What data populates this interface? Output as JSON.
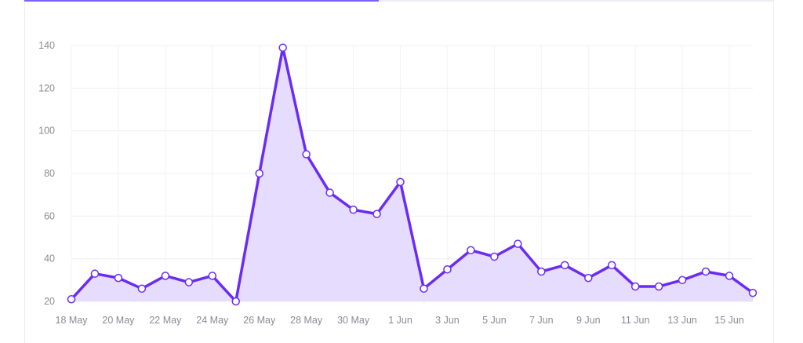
{
  "page": {
    "progress_fraction": 0.473,
    "accent_color": "#7b61ff"
  },
  "chart_data": {
    "type": "area",
    "title": "",
    "xlabel": "",
    "ylabel": "",
    "ylim": [
      20,
      140
    ],
    "yticks": [
      20,
      40,
      60,
      80,
      100,
      120,
      140
    ],
    "x": [
      "18 May",
      "19 May",
      "20 May",
      "21 May",
      "22 May",
      "23 May",
      "24 May",
      "25 May",
      "26 May",
      "27 May",
      "28 May",
      "29 May",
      "30 May",
      "31 May",
      "1 Jun",
      "2 Jun",
      "3 Jun",
      "4 Jun",
      "5 Jun",
      "6 Jun",
      "7 Jun",
      "8 Jun",
      "9 Jun",
      "10 Jun",
      "11 Jun",
      "12 Jun",
      "13 Jun",
      "14 Jun",
      "15 Jun",
      "16 Jun"
    ],
    "xticks": [
      "18 May",
      "20 May",
      "22 May",
      "24 May",
      "26 May",
      "28 May",
      "30 May",
      "1 Jun",
      "3 Jun",
      "5 Jun",
      "7 Jun",
      "9 Jun",
      "11 Jun",
      "13 Jun",
      "15 Jun"
    ],
    "values": [
      21,
      33,
      31,
      26,
      32,
      29,
      32,
      20,
      80,
      139,
      89,
      71,
      63,
      61,
      76,
      26,
      35,
      44,
      41,
      47,
      34,
      37,
      31,
      37,
      27,
      27,
      30,
      34,
      32,
      24
    ],
    "grid": true,
    "legend": "none",
    "line_color": "#6a2cf5",
    "fill_color": "#e6dcfd",
    "marker_fill": "#ffffff"
  }
}
